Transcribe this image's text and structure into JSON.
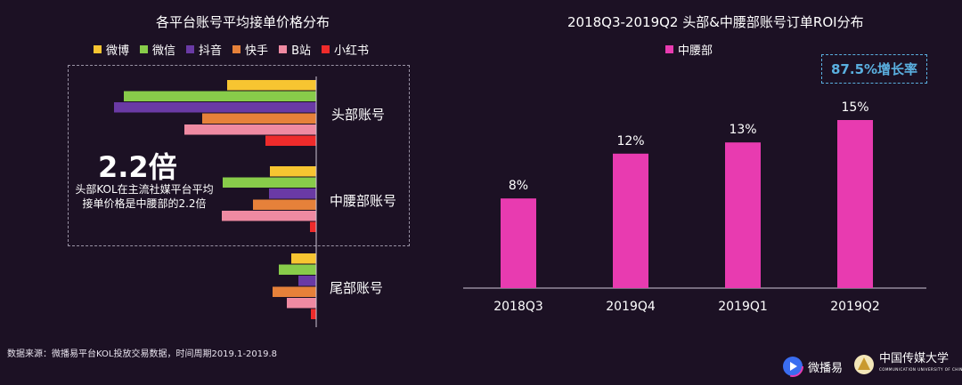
{
  "left_chart": {
    "title": "各平台账号平均接单价格分布",
    "legend": [
      {
        "name": "微博",
        "color": "#f7c531"
      },
      {
        "name": "微信",
        "color": "#88cc4a"
      },
      {
        "name": "抖音",
        "color": "#6a3aa5"
      },
      {
        "name": "快手",
        "color": "#e6813a"
      },
      {
        "name": "B站",
        "color": "#ef8aa2"
      },
      {
        "name": "小红书",
        "color": "#ef2b2b"
      }
    ],
    "categories": [
      "头部账号",
      "中腰部账号",
      "尾部账号"
    ],
    "callout_value": "2.2倍",
    "callout_text": "头部KOL在主流社媒平台平均接单价格是中腰部的2.2倍"
  },
  "chart_data": [
    {
      "type": "bar",
      "orientation": "horizontal",
      "title": "各平台账号平均接单价格分布",
      "categories": [
        "头部账号",
        "中腰部账号",
        "尾部账号"
      ],
      "series": [
        {
          "name": "微博",
          "values": [
            100,
            52,
            28
          ]
        },
        {
          "name": "微信",
          "values": [
            216,
            105,
            42
          ]
        },
        {
          "name": "抖音",
          "values": [
            227,
            53,
            20
          ]
        },
        {
          "name": "快手",
          "values": [
            128,
            71,
            49
          ]
        },
        {
          "name": "B站",
          "values": [
            148,
            106,
            33
          ]
        },
        {
          "name": "小红书",
          "values": [
            57,
            7,
            6
          ]
        }
      ],
      "xlabel": "",
      "ylabel": "",
      "note": "relative bar lengths, no axis values shown"
    },
    {
      "type": "bar",
      "title": "2018Q3-2019Q2 头部&中腰部账号订单ROI分布",
      "categories": [
        "2018Q3",
        "2019Q4",
        "2019Q1",
        "2019Q2"
      ],
      "series": [
        {
          "name": "中腰部",
          "values": [
            8,
            12,
            13,
            15
          ]
        }
      ],
      "data_labels": [
        "8%",
        "12%",
        "13%",
        "15%"
      ],
      "ylim": [
        0,
        17
      ],
      "xlabel": "",
      "ylabel": ""
    }
  ],
  "right_chart": {
    "title": "2018Q3-2019Q2 头部&中腰部账号订单ROI分布",
    "legend_label": "中腰部",
    "color": "#e83bb0",
    "growth_badge": "87.5%增长率"
  },
  "footer": {
    "source": "数据来源：微播易平台KOL投放交易数据，时间周期2019.1-2019.8",
    "logo1": "微播易",
    "logo2": "中国传媒大学",
    "logo2_sub": "COMMUNICATION UNIVERSITY OF CHINA"
  }
}
